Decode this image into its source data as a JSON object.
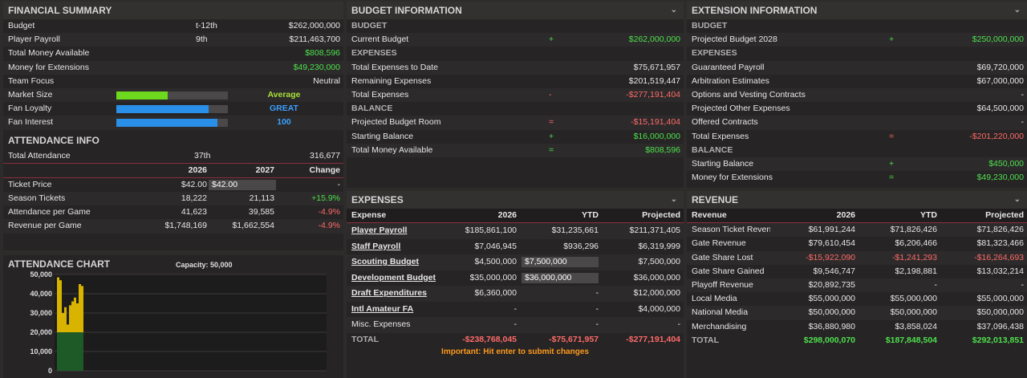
{
  "financial_summary": {
    "title": "FINANCIAL SUMMARY",
    "rows": [
      {
        "label": "Budget",
        "rank": "t-12th",
        "value": "$262,000,000"
      },
      {
        "label": "Player Payroll",
        "rank": "9th",
        "value": "$211,463,700"
      },
      {
        "label": "Total Money Available",
        "rank": "",
        "value": "$808,596"
      },
      {
        "label": "Money for Extensions",
        "rank": "",
        "value": "$49,230,000"
      },
      {
        "label": "Team Focus",
        "rank": "",
        "value": "Neutral"
      }
    ],
    "meters": [
      {
        "label": "Market Size",
        "text": "Average",
        "fill": 0.46,
        "color": "#6ed81e",
        "text_color": "#a8e03a"
      },
      {
        "label": "Fan Loyalty",
        "text": "GREAT",
        "fill": 0.83,
        "color": "#2a8fe8",
        "text_color": "#3aa0ff"
      },
      {
        "label": "Fan Interest",
        "text": "100",
        "fill": 0.91,
        "color": "#2a8fe8",
        "text_color": "#3aa0ff"
      }
    ]
  },
  "attendance_info": {
    "title": "ATTENDANCE INFO",
    "total_label": "Total Attendance",
    "total_rank": "37th",
    "total_value": "316,677",
    "headers": [
      "2026",
      "2027",
      "Change"
    ],
    "ticket_price_label": "Ticket Price",
    "ticket_price_2026": "$42.00",
    "ticket_price_2027": "$42.00",
    "ticket_price_change": "-",
    "rows": [
      {
        "label": "Season Tickets",
        "y2026": "18,222",
        "y2027": "21,113",
        "change": "+15.9%",
        "positive": true
      },
      {
        "label": "Attendance per Game",
        "y2026": "41,623",
        "y2027": "39,585",
        "change": "-4.9%",
        "positive": false
      },
      {
        "label": "Revenue per Game",
        "y2026": "$1,748,169",
        "y2027": "$1,662,554",
        "change": "-4.9%",
        "positive": false
      }
    ]
  },
  "attendance_chart": {
    "title": "ATTENDANCE CHART",
    "capacity_label": "Capacity: 50,000"
  },
  "chart_data": {
    "type": "bar",
    "title": "",
    "subtitle": "Capacity: 50,000",
    "ylim": [
      0,
      50000
    ],
    "y_ticks": [
      "0",
      "10,000",
      "20,000",
      "30,000",
      "40,000",
      "50,000"
    ],
    "series": [
      {
        "values": [
          20000,
          20000,
          20000,
          20000,
          20000,
          20000,
          20000,
          20000,
          20000,
          20000,
          20000
        ]
      },
      {
        "values": [
          28500,
          27000,
          10000,
          13000,
          4000,
          14000,
          16000,
          18000,
          15000,
          25000,
          24000
        ]
      }
    ],
    "colors": [
      "#1e5a28",
      "#d8b400"
    ]
  },
  "budget_info": {
    "title": "BUDGET INFORMATION",
    "sections": [
      {
        "header": "BUDGET",
        "rows": [
          {
            "label": "Current Budget",
            "op": "+",
            "value": "$262,000,000",
            "color": "g"
          }
        ]
      },
      {
        "header": "EXPENSES",
        "rows": [
          {
            "label": "Total Expenses to Date",
            "op": "",
            "value": "$75,671,957",
            "color": ""
          },
          {
            "label": "Remaining Expenses",
            "op": "",
            "value": "$201,519,447",
            "color": ""
          },
          {
            "label": "Total Expenses",
            "op": "-",
            "value": "-$277,191,404",
            "color": "rd"
          }
        ]
      },
      {
        "header": "BALANCE",
        "rows": [
          {
            "label": "Projected Budget Room",
            "op": "=",
            "value": "-$15,191,404",
            "color": "rd"
          },
          {
            "label": "Starting Balance",
            "op": "+",
            "value": "$16,000,000",
            "color": "g"
          },
          {
            "label": "Total Money Available",
            "op": "=",
            "value": "$808,596",
            "color": "g"
          }
        ]
      }
    ]
  },
  "extension_info": {
    "title": "EXTENSION INFORMATION",
    "sections": [
      {
        "header": "BUDGET",
        "rows": [
          {
            "label": "Projected Budget 2028",
            "op": "+",
            "value": "$250,000,000",
            "color": "g"
          }
        ]
      },
      {
        "header": "EXPENSES",
        "rows": [
          {
            "label": "Guaranteed Payroll",
            "op": "",
            "value": "$69,720,000",
            "color": ""
          },
          {
            "label": "Arbitration Estimates",
            "op": "",
            "value": "$67,000,000",
            "color": ""
          },
          {
            "label": "Options and Vesting Contracts",
            "op": "",
            "value": "-",
            "color": ""
          },
          {
            "label": "Projected Other Expenses",
            "op": "",
            "value": "$64,500,000",
            "color": ""
          },
          {
            "label": "Offered Contracts",
            "op": "",
            "value": "-",
            "color": ""
          },
          {
            "label": "Total Expenses",
            "op": "=",
            "value": "-$201,220,000",
            "color": "rd"
          }
        ]
      },
      {
        "header": "BALANCE",
        "rows": [
          {
            "label": "Starting Balance",
            "op": "+",
            "value": "$450,000",
            "color": "g"
          },
          {
            "label": "Money for Extensions",
            "op": "=",
            "value": "$49,230,000",
            "color": "g"
          }
        ]
      }
    ]
  },
  "expenses": {
    "title": "EXPENSES",
    "headers": [
      "Expense",
      "2026",
      "YTD",
      "Projected"
    ],
    "rows": [
      {
        "label": "Player Payroll",
        "link": true,
        "y2026": "$185,861,100",
        "ytd": "$31,235,661",
        "projected": "$211,371,405",
        "input": ""
      },
      {
        "label": "Staff Payroll",
        "link": true,
        "y2026": "$7,046,945",
        "ytd": "$936,296",
        "projected": "$6,319,999",
        "input": ""
      },
      {
        "label": "Scouting Budget",
        "link": true,
        "y2026": "$4,500,000",
        "ytd": "",
        "projected": "$7,500,000",
        "input": "$7,500,000"
      },
      {
        "label": "Development Budget",
        "link": true,
        "y2026": "$35,000,000",
        "ytd": "",
        "projected": "$36,000,000",
        "input": "$36,000,000"
      },
      {
        "label": "Draft Expenditures",
        "link": true,
        "y2026": "$6,360,000",
        "ytd": "-",
        "projected": "$12,000,000",
        "input": ""
      },
      {
        "label": "Intl Amateur FA",
        "link": true,
        "y2026": "-",
        "ytd": "-",
        "projected": "$4,000,000",
        "input": ""
      },
      {
        "label": "Misc. Expenses",
        "link": false,
        "y2026": "-",
        "ytd": "-",
        "projected": "-",
        "input": ""
      }
    ],
    "total": {
      "label": "TOTAL",
      "y2026": "-$238,768,045",
      "ytd": "-$75,671,957",
      "projected": "-$277,191,404"
    },
    "notice": "Important: Hit enter to submit changes"
  },
  "revenue": {
    "title": "REVENUE",
    "headers": [
      "Revenue",
      "2026",
      "YTD",
      "Projected"
    ],
    "rows": [
      {
        "label": "Season Ticket Revenue",
        "y2026": "$61,991,244",
        "ytd": "$71,826,426",
        "projected": "$71,826,426",
        "neg": false
      },
      {
        "label": "Gate Revenue",
        "y2026": "$79,610,454",
        "ytd": "$6,206,466",
        "projected": "$81,323,466",
        "neg": false
      },
      {
        "label": "Gate Share Lost",
        "y2026": "-$15,922,090",
        "ytd": "-$1,241,293",
        "projected": "-$16,264,693",
        "neg": true
      },
      {
        "label": "Gate Share Gained",
        "y2026": "$9,546,747",
        "ytd": "$2,198,881",
        "projected": "$13,032,214",
        "neg": false
      },
      {
        "label": "Playoff Revenue",
        "y2026": "$20,892,735",
        "ytd": "-",
        "projected": "-",
        "neg": false
      },
      {
        "label": "Local Media",
        "y2026": "$55,000,000",
        "ytd": "$55,000,000",
        "projected": "$55,000,000",
        "neg": false
      },
      {
        "label": "National Media",
        "y2026": "$50,000,000",
        "ytd": "$50,000,000",
        "projected": "$50,000,000",
        "neg": false
      },
      {
        "label": "Merchandising",
        "y2026": "$36,880,980",
        "ytd": "$3,858,024",
        "projected": "$37,096,438",
        "neg": false
      }
    ],
    "total": {
      "label": "TOTAL",
      "y2026": "$298,000,070",
      "ytd": "$187,848,504",
      "projected": "$292,013,851"
    }
  }
}
